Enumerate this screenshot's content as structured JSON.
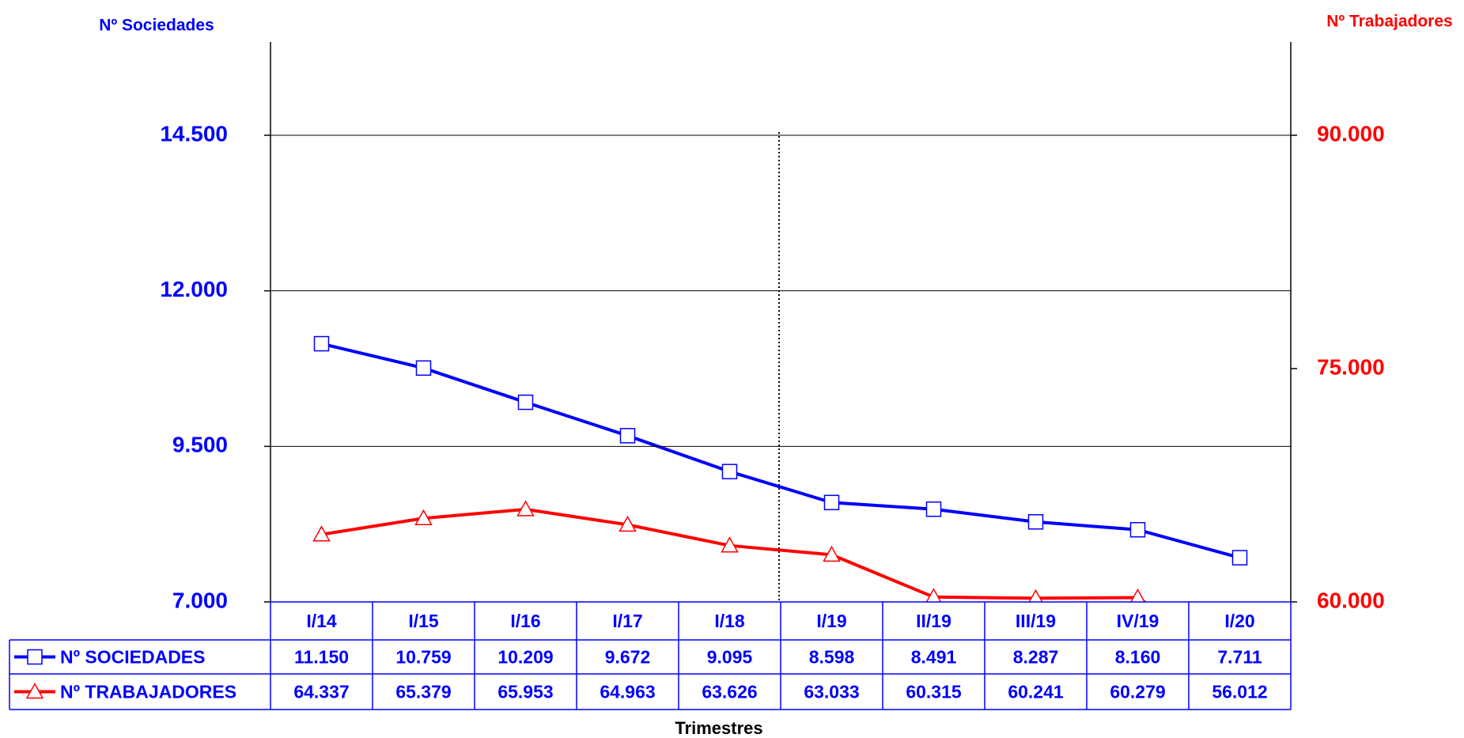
{
  "chart_data": {
    "type": "line",
    "y_label": "Nº Sociedades",
    "y2_label": "Nº Trabajadores",
    "x_label": "Trimestres",
    "categories": [
      "I/14",
      "I/15",
      "I/16",
      "I/17",
      "I/18",
      "I/19",
      "II/19",
      "III/19",
      "IV/19",
      "I/20"
    ],
    "series": [
      {
        "name": "Nº SOCIEDADES",
        "color": "#0000ff",
        "marker": "square",
        "values": [
          11150,
          10759,
          10209,
          9672,
          9095,
          8598,
          8491,
          8287,
          8160,
          7711
        ],
        "value_labels": [
          "11.150",
          "10.759",
          "10.209",
          "9.672",
          "9.095",
          "8.598",
          "8.491",
          "8.287",
          "8.160",
          "7.711"
        ]
      },
      {
        "name": "Nº TRABAJADORES",
        "color": "#ff0000",
        "marker": "triangle",
        "axis": "y2",
        "values": [
          64337,
          65379,
          65953,
          64963,
          63626,
          63033,
          60315,
          60241,
          60279,
          56012
        ],
        "value_labels": [
          "64.337",
          "65.379",
          "65.953",
          "64.963",
          "63.626",
          "63.033",
          "60.315",
          "60.241",
          "60.279",
          "56.012"
        ]
      }
    ],
    "ylim": [
      7000,
      16000
    ],
    "yticks": [
      {
        "value": 7000,
        "label": "7.000"
      },
      {
        "value": 9500,
        "label": "9.500"
      },
      {
        "value": 12000,
        "label": "12.000"
      },
      {
        "value": 14500,
        "label": "14.500"
      }
    ],
    "y2lim": [
      60000,
      96000
    ],
    "y2ticks": [
      {
        "value": 60000,
        "label": "60.000"
      },
      {
        "value": 75000,
        "label": "75.000"
      },
      {
        "value": 90000,
        "label": "90.000"
      }
    ],
    "grid": true
  }
}
